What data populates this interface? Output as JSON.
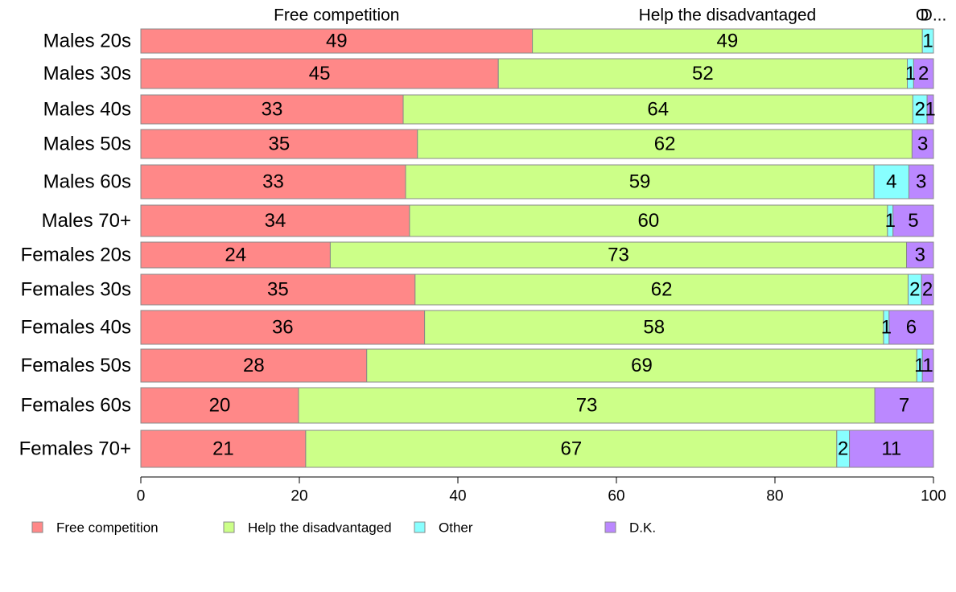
{
  "chart_data": {
    "type": "bar",
    "orientation": "horizontal",
    "stacked": true,
    "categories": [
      "Males 20s",
      "Males 30s",
      "Males 40s",
      "Males 50s",
      "Males 60s",
      "Males 70+",
      "Females 20s",
      "Females 30s",
      "Females 40s",
      "Females 50s",
      "Females 60s",
      "Females 70+"
    ],
    "series": [
      {
        "name": "Free competition",
        "color": "#ff8888",
        "values": [
          49.4,
          45.1,
          33.1,
          34.9,
          33.4,
          33.9,
          23.9,
          34.6,
          35.8,
          28.5,
          19.9,
          20.8
        ]
      },
      {
        "name": "Help the disadvantaged",
        "color": "#ccff88",
        "values": [
          49.2,
          51.6,
          64.3,
          62.4,
          59.1,
          60.3,
          72.7,
          62.2,
          57.9,
          69.4,
          72.7,
          67.0
        ]
      },
      {
        "name": "Other",
        "color": "#88ffff",
        "values": [
          1.4,
          0.8,
          1.8,
          0.0,
          4.4,
          0.7,
          0.0,
          1.7,
          0.7,
          0.7,
          0.0,
          1.6
        ]
      },
      {
        "name": "D.K.",
        "color": "#bb88ff",
        "values": [
          0.0,
          2.5,
          0.8,
          2.7,
          3.1,
          5.1,
          3.4,
          1.5,
          5.6,
          1.4,
          7.4,
          10.6
        ]
      }
    ],
    "data_labels": [
      [
        "49",
        "49",
        "1",
        ""
      ],
      [
        "45",
        "52",
        "1",
        "2"
      ],
      [
        "33",
        "64",
        "2",
        "1"
      ],
      [
        "35",
        "62",
        "",
        "3"
      ],
      [
        "33",
        "59",
        "4",
        "3"
      ],
      [
        "34",
        "60",
        "1",
        "5"
      ],
      [
        "24",
        "73",
        "",
        "3"
      ],
      [
        "35",
        "62",
        "2",
        "2"
      ],
      [
        "36",
        "58",
        "1",
        "6"
      ],
      [
        "28",
        "69",
        "1",
        "1"
      ],
      [
        "20",
        "73",
        "",
        "7"
      ],
      [
        "21",
        "67",
        "2",
        "11"
      ]
    ],
    "top_labels": [
      "Free competition",
      "Help the disadvantaged",
      "O",
      "D..."
    ],
    "xlim": [
      0,
      100
    ],
    "xticks": [
      0,
      20,
      40,
      60,
      80,
      100
    ],
    "xlabel": "",
    "ylabel": "",
    "title": "",
    "grid": false,
    "legend": {
      "position": "bottom",
      "labels": [
        "Free competition",
        "Help the disadvantaged",
        "Other",
        "D.K."
      ]
    }
  }
}
